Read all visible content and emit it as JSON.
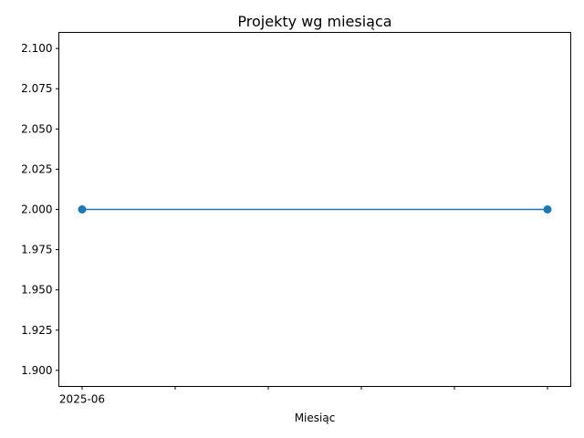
{
  "chart_data": {
    "type": "line",
    "title": "Projekty wg miesiąca",
    "xlabel": "Miesiąc",
    "ylabel": "",
    "x_ticks": [
      "2025-06",
      "",
      "",
      "",
      "",
      ""
    ],
    "ylim": [
      1.89,
      2.11
    ],
    "yticks": [
      1.9,
      1.925,
      1.95,
      1.975,
      2.0,
      2.025,
      2.05,
      2.075,
      2.1
    ],
    "ytick_labels": [
      "1.900",
      "1.925",
      "1.950",
      "1.975",
      "2.000",
      "2.025",
      "2.050",
      "2.075",
      "2.100"
    ],
    "series": [
      {
        "color": "#1f77b4",
        "marker": "circle",
        "points": [
          {
            "x_index": 0,
            "y": 2.0
          },
          {
            "x_index": 5,
            "y": 2.0
          }
        ]
      }
    ],
    "grid": false,
    "legend": "none"
  }
}
